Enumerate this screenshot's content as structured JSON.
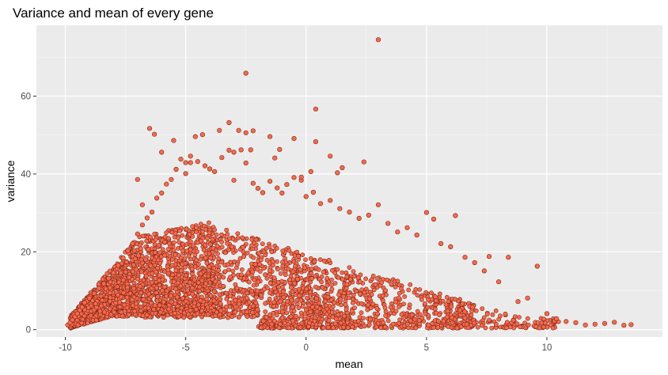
{
  "chart_data": {
    "type": "scatter",
    "title": "Variance and mean of every gene",
    "xlabel": "mean",
    "ylabel": "variance",
    "xlim": [
      -11.2,
      14.8
    ],
    "ylim": [
      -1.9,
      78.2
    ],
    "x_ticks": [
      -10,
      -5,
      0,
      5,
      10
    ],
    "y_ticks": [
      0,
      20,
      40,
      60
    ],
    "x_tick_labels": [
      "-10",
      "-5",
      "0",
      "5",
      "10"
    ],
    "y_tick_labels": [
      "0",
      "20",
      "40",
      "60"
    ],
    "grid": true,
    "panel_background": "#ebebeb",
    "point_fill": "#f46a4e",
    "point_stroke": "#7a2412",
    "points": [
      [
        -9.9,
        1.2
      ],
      [
        -9.8,
        1.8
      ],
      [
        -9.7,
        2.5
      ],
      [
        -9.6,
        3.3
      ],
      [
        -9.5,
        4.1
      ],
      [
        -9.4,
        5.0
      ],
      [
        -9.3,
        5.8
      ],
      [
        -9.2,
        6.9
      ],
      [
        -9.0,
        8.1
      ],
      [
        -8.8,
        9.3
      ],
      [
        -8.6,
        10.6
      ],
      [
        -8.4,
        11.8
      ],
      [
        -8.2,
        13.2
      ],
      [
        -8.0,
        14.6
      ],
      [
        -7.8,
        16.5
      ],
      [
        -7.6,
        18.4
      ],
      [
        -7.4,
        20.3
      ],
      [
        -7.2,
        22.1
      ],
      [
        -7.0,
        24.6
      ],
      [
        -6.8,
        26.9
      ],
      [
        -6.6,
        28.7
      ],
      [
        -6.4,
        30.2
      ],
      [
        -6.2,
        33.8
      ],
      [
        -6.0,
        35.1
      ],
      [
        -5.8,
        37.4
      ],
      [
        -5.6,
        38.6
      ],
      [
        -5.4,
        41.2
      ],
      [
        -5.2,
        43.8
      ],
      [
        -5.0,
        42.9
      ],
      [
        -4.8,
        44.6
      ],
      [
        -4.5,
        43.2
      ],
      [
        -4.2,
        42.1
      ],
      [
        -4.0,
        41.3
      ],
      [
        -3.8,
        40.6
      ],
      [
        -3.5,
        44.2
      ],
      [
        -3.2,
        46.1
      ],
      [
        -3.0,
        38.4
      ],
      [
        -2.7,
        46.2
      ],
      [
        -2.5,
        42.8
      ],
      [
        -2.2,
        37.6
      ],
      [
        -2.0,
        36.3
      ],
      [
        -1.8,
        35.2
      ],
      [
        -1.5,
        38.1
      ],
      [
        -1.2,
        36.4
      ],
      [
        -1.0,
        35.1
      ],
      [
        -0.8,
        37.3
      ],
      [
        -0.5,
        39.1
      ],
      [
        -0.2,
        38.4
      ],
      [
        0.0,
        34.2
      ],
      [
        0.3,
        35.3
      ],
      [
        0.6,
        32.4
      ],
      [
        1.0,
        33.2
      ],
      [
        1.4,
        31.1
      ],
      [
        1.8,
        30.2
      ],
      [
        2.2,
        28.6
      ],
      [
        2.6,
        29.4
      ],
      [
        3.0,
        32.1
      ],
      [
        3.4,
        27.3
      ],
      [
        3.8,
        25.1
      ],
      [
        4.2,
        26.2
      ],
      [
        4.6,
        24.3
      ],
      [
        5.0,
        30.1
      ],
      [
        5.3,
        28.4
      ],
      [
        5.6,
        22.1
      ],
      [
        6.0,
        21.3
      ],
      [
        6.2,
        29.3
      ],
      [
        6.6,
        18.6
      ],
      [
        7.0,
        17.2
      ],
      [
        7.4,
        15.1
      ],
      [
        7.6,
        18.8
      ],
      [
        8.0,
        12.3
      ],
      [
        8.4,
        18.6
      ],
      [
        8.8,
        7.2
      ],
      [
        9.2,
        8.1
      ],
      [
        9.6,
        16.3
      ],
      [
        10.0,
        4.1
      ],
      [
        10.4,
        2.8
      ],
      [
        10.8,
        2.1
      ],
      [
        11.2,
        1.8
      ],
      [
        11.6,
        1.2
      ],
      [
        12.0,
        1.4
      ],
      [
        12.4,
        1.6
      ],
      [
        12.8,
        1.9
      ],
      [
        13.2,
        1.1
      ],
      [
        13.5,
        1.3
      ],
      [
        -7.0,
        38.6
      ],
      [
        -6.8,
        32.1
      ],
      [
        -6.3,
        50.2
      ],
      [
        -6.0,
        45.6
      ],
      [
        -5.5,
        48.6
      ],
      [
        -5.0,
        40.1
      ],
      [
        -4.3,
        50.1
      ],
      [
        -3.6,
        51.2
      ],
      [
        -3.2,
        53.2
      ],
      [
        -2.8,
        51.2
      ],
      [
        -2.5,
        50.6
      ],
      [
        -2.2,
        51.1
      ],
      [
        -1.5,
        49.6
      ],
      [
        -1.1,
        46.3
      ],
      [
        -0.5,
        49.1
      ],
      [
        0.4,
        48.3
      ],
      [
        1.0,
        44.6
      ],
      [
        1.5,
        41.6
      ],
      [
        2.4,
        43.1
      ],
      [
        -4.8,
        42.9
      ],
      [
        -3.0,
        45.6
      ],
      [
        3.0,
        74.5
      ],
      [
        -2.5,
        65.9
      ],
      [
        0.4,
        56.7
      ],
      [
        -6.5,
        51.7
      ],
      [
        -4.6,
        49.6
      ],
      [
        -2.3,
        46.2
      ],
      [
        -1.3,
        44.1
      ],
      [
        0.2,
        40.6
      ],
      [
        -0.2,
        39.2
      ],
      [
        1.3,
        40.3
      ]
    ]
  }
}
